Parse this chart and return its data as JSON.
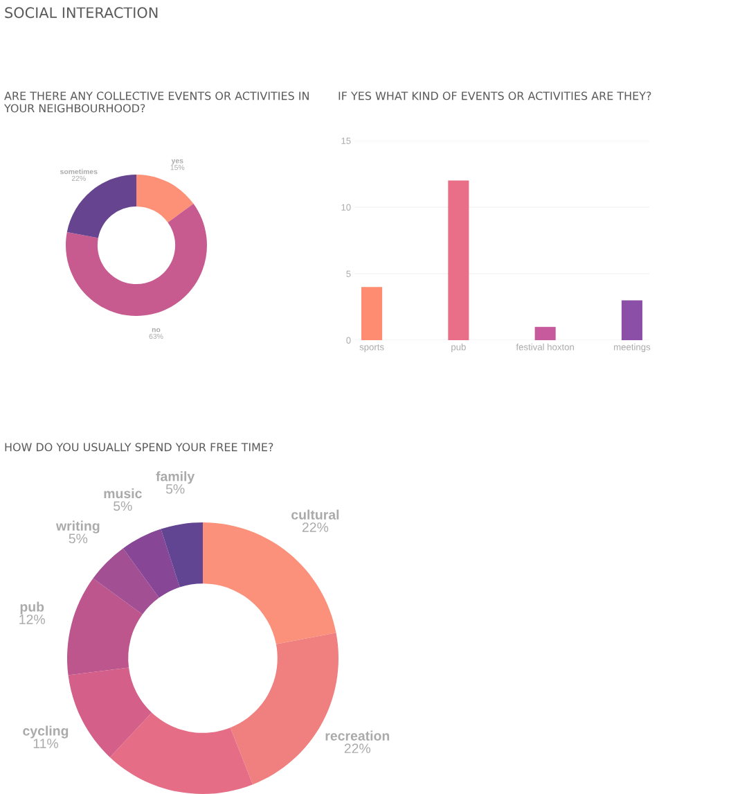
{
  "chart_data": [
    {
      "type": "donut",
      "title": "ARE THERE ANY COLLECTIVE EVENTS OR ACTIVITIES IN YOUR NEIGHBOURHOOD?",
      "annotations": [
        "SOCIAL INTERACTION"
      ],
      "categories": [
        "yes",
        "no",
        "sometimes"
      ],
      "values": [
        15,
        63,
        22
      ],
      "colors": [
        "#fc9177",
        "#c75b8f",
        "#67448f"
      ],
      "value_labels": [
        "15%",
        "63%",
        "22%"
      ]
    },
    {
      "type": "bar",
      "title": "IF YES WHAT KIND OF EVENTS OR ACTIVITIES ARE THEY?",
      "categories": [
        "sports",
        "pub",
        "festival hoxton",
        "meetings"
      ],
      "values": [
        4,
        12,
        1,
        3
      ],
      "colors": [
        "#fd8c71",
        "#e96e88",
        "#c75a9c",
        "#8c4fa8"
      ],
      "ylim": [
        0,
        15
      ],
      "yticks": [
        0,
        5,
        10,
        15
      ],
      "grid": "y"
    },
    {
      "type": "donut",
      "title": "HOW DO YOU USUALLY SPEND YOUR FREE TIME?",
      "categories": [
        "cultural",
        "recreation",
        null,
        "cycling",
        "pub",
        "writing",
        "music",
        "family"
      ],
      "values": [
        22,
        22,
        18,
        11,
        12,
        5,
        5,
        5
      ],
      "colors": [
        "#fb917a",
        "#f07f80",
        "#e56e86",
        "#d45f88",
        "#bd568d",
        "#a34f93",
        "#874796",
        "#624592"
      ],
      "value_labels": [
        "22%",
        "22%",
        null,
        "11%",
        "12%",
        "5%",
        "5%",
        "5%"
      ]
    }
  ]
}
